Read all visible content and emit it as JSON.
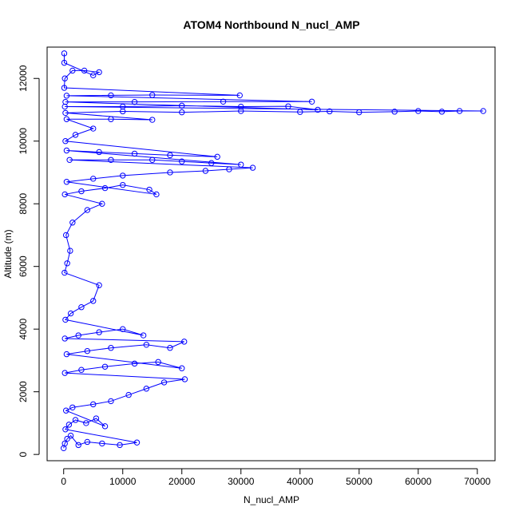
{
  "chart_data": {
    "type": "scatter",
    "title": "ATOM4 Northbound N_nucl_AMP",
    "xlabel": "N_nucl_AMP",
    "ylabel": "Altitude (m)",
    "xlim": [
      -2800,
      73000
    ],
    "ylim": [
      -200,
      13000
    ],
    "x_ticks": [
      0,
      10000,
      20000,
      30000,
      40000,
      50000,
      60000,
      70000
    ],
    "x_tick_labels": [
      "0",
      "10000",
      "20000",
      "30000",
      "40000",
      "50000",
      "60000",
      "70000"
    ],
    "y_ticks": [
      0,
      2000,
      4000,
      6000,
      8000,
      10000,
      12000
    ],
    "y_tick_labels": [
      "0",
      "2000",
      "4000",
      "6000",
      "8000",
      "10000",
      "12000"
    ],
    "grid": false,
    "legend": "none",
    "series_color": "#0000ff",
    "marker": "open-circle",
    "connected": true,
    "points": [
      [
        0,
        200
      ],
      [
        200,
        350
      ],
      [
        600,
        500
      ],
      [
        1200,
        600
      ],
      [
        2500,
        300
      ],
      [
        4000,
        400
      ],
      [
        6500,
        350
      ],
      [
        9500,
        300
      ],
      [
        12400,
        380
      ],
      [
        300,
        800
      ],
      [
        900,
        950
      ],
      [
        2000,
        1100
      ],
      [
        3800,
        1000
      ],
      [
        5500,
        1150
      ],
      [
        7000,
        900
      ],
      [
        400,
        1400
      ],
      [
        1500,
        1500
      ],
      [
        5000,
        1600
      ],
      [
        8000,
        1700
      ],
      [
        11000,
        1900
      ],
      [
        14000,
        2100
      ],
      [
        17000,
        2300
      ],
      [
        20500,
        2400
      ],
      [
        200,
        2600
      ],
      [
        3000,
        2700
      ],
      [
        7000,
        2800
      ],
      [
        12000,
        2900
      ],
      [
        16000,
        2950
      ],
      [
        20000,
        2750
      ],
      [
        500,
        3200
      ],
      [
        4000,
        3300
      ],
      [
        8000,
        3400
      ],
      [
        14000,
        3500
      ],
      [
        18000,
        3400
      ],
      [
        20400,
        3600
      ],
      [
        200,
        3700
      ],
      [
        2500,
        3800
      ],
      [
        6000,
        3900
      ],
      [
        10000,
        4000
      ],
      [
        13500,
        3800
      ],
      [
        300,
        4300
      ],
      [
        1200,
        4500
      ],
      [
        3000,
        4700
      ],
      [
        5000,
        4900
      ],
      [
        6000,
        5400
      ],
      [
        150,
        5800
      ],
      [
        600,
        6100
      ],
      [
        1100,
        6500
      ],
      [
        400,
        7000
      ],
      [
        1500,
        7400
      ],
      [
        4000,
        7800
      ],
      [
        6500,
        8000
      ],
      [
        200,
        8300
      ],
      [
        3000,
        8400
      ],
      [
        7000,
        8500
      ],
      [
        10000,
        8600
      ],
      [
        14500,
        8450
      ],
      [
        15700,
        8300
      ],
      [
        500,
        8700
      ],
      [
        5000,
        8800
      ],
      [
        10000,
        8900
      ],
      [
        18000,
        9000
      ],
      [
        24000,
        9050
      ],
      [
        28000,
        9100
      ],
      [
        32000,
        9150
      ],
      [
        1000,
        9400
      ],
      [
        8000,
        9400
      ],
      [
        15000,
        9400
      ],
      [
        20000,
        9350
      ],
      [
        25000,
        9300
      ],
      [
        30000,
        9250
      ],
      [
        500,
        9700
      ],
      [
        6000,
        9650
      ],
      [
        12000,
        9600
      ],
      [
        18000,
        9550
      ],
      [
        26000,
        9500
      ],
      [
        300,
        10000
      ],
      [
        2000,
        10200
      ],
      [
        5000,
        10400
      ],
      [
        500,
        10700
      ],
      [
        8000,
        10700
      ],
      [
        15000,
        10680
      ],
      [
        300,
        10900
      ],
      [
        10000,
        10950
      ],
      [
        20000,
        10920
      ],
      [
        30000,
        10960
      ],
      [
        40000,
        10930
      ],
      [
        45000,
        10950
      ],
      [
        50000,
        10920
      ],
      [
        56000,
        10940
      ],
      [
        60000,
        10960
      ],
      [
        64000,
        10940
      ],
      [
        67000,
        10960
      ],
      [
        71000,
        10960
      ],
      [
        200,
        11100
      ],
      [
        10000,
        11100
      ],
      [
        20000,
        11130
      ],
      [
        30000,
        11100
      ],
      [
        38000,
        11110
      ],
      [
        43000,
        11000
      ],
      [
        300,
        11250
      ],
      [
        12000,
        11250
      ],
      [
        27000,
        11260
      ],
      [
        42000,
        11260
      ],
      [
        500,
        11450
      ],
      [
        8000,
        11460
      ],
      [
        15000,
        11470
      ],
      [
        29800,
        11460
      ],
      [
        100,
        11700
      ],
      [
        200,
        12000
      ],
      [
        1500,
        12250
      ],
      [
        3500,
        12250
      ],
      [
        6000,
        12200
      ],
      [
        5000,
        12100
      ],
      [
        100,
        12500
      ],
      [
        100,
        12800
      ]
    ]
  }
}
